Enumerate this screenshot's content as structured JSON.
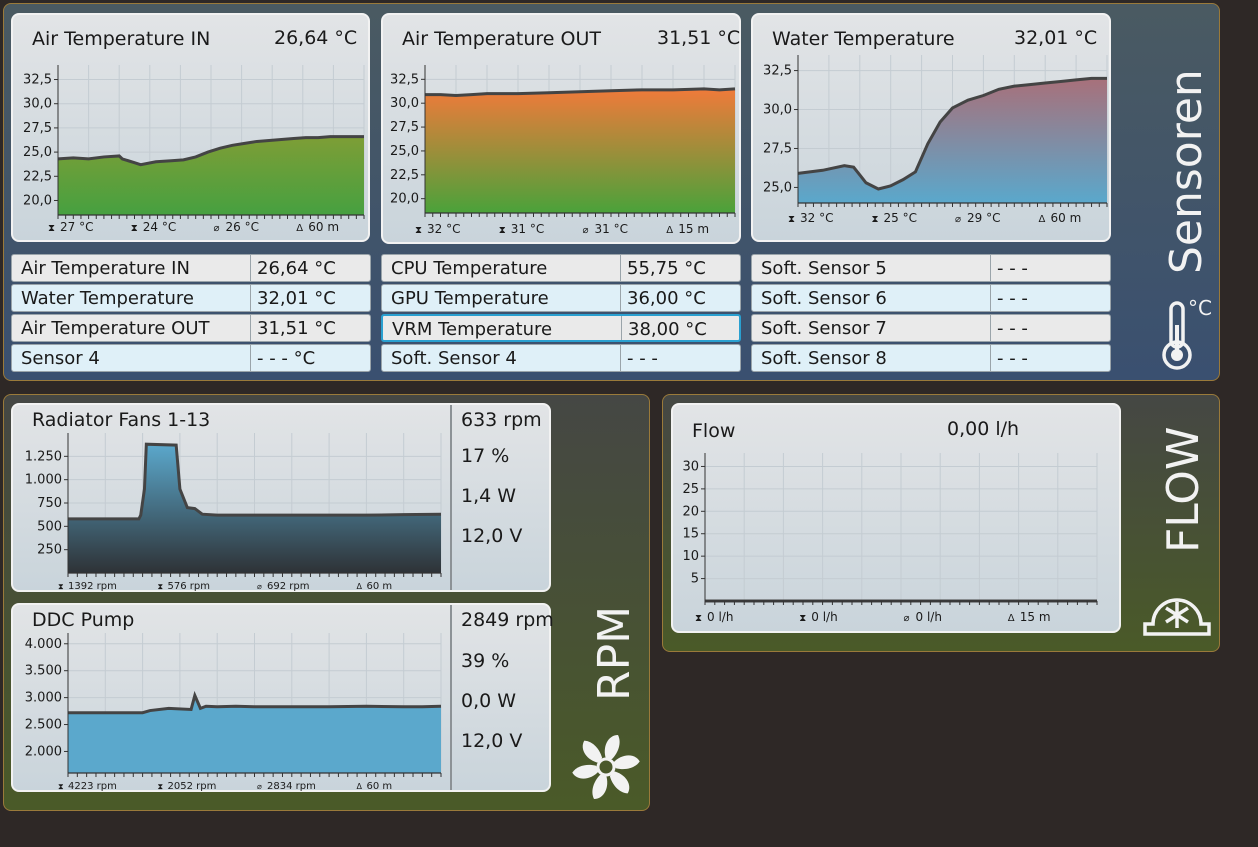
{
  "sensors_panel": {
    "label": "Sensoren",
    "unit_icon_text": "°C",
    "charts": [
      {
        "title": "Air Temperature IN",
        "value": "26,64 °C",
        "max": "27 °C",
        "min": "24 °C",
        "avg": "26 °C",
        "span": "60 m"
      },
      {
        "title": "Air Temperature OUT",
        "value": "31,51 °C",
        "max": "32 °C",
        "min": "31 °C",
        "avg": "31 °C",
        "span": "15 m"
      },
      {
        "title": "Water Temperature",
        "value": "32,01 °C",
        "max": "32 °C",
        "min": "25 °C",
        "avg": "29 °C",
        "span": "60 m"
      }
    ],
    "table": [
      [
        {
          "name": "Air Temperature IN",
          "value": "26,64 °C"
        },
        {
          "name": "Water Temperature",
          "value": "32,01 °C"
        },
        {
          "name": "Air Temperature OUT",
          "value": "31,51 °C"
        },
        {
          "name": "Sensor 4",
          "value": "- - - °C"
        }
      ],
      [
        {
          "name": "CPU Temperature",
          "value": "55,75 °C"
        },
        {
          "name": "GPU Temperature",
          "value": "36,00 °C"
        },
        {
          "name": "VRM Temperature",
          "value": "38,00 °C"
        },
        {
          "name": "Soft. Sensor 4",
          "value": "- - -"
        }
      ],
      [
        {
          "name": "Soft. Sensor 5",
          "value": "- - -"
        },
        {
          "name": "Soft. Sensor 6",
          "value": "- - -"
        },
        {
          "name": "Soft. Sensor 7",
          "value": "- - -"
        },
        {
          "name": "Soft. Sensor 8",
          "value": "- - -"
        }
      ]
    ]
  },
  "rpm_panel": {
    "label": "RPM",
    "fans": {
      "title": "Radiator Fans 1-13",
      "rpm": "633 rpm",
      "percent": "17 %",
      "power": "1,4 W",
      "voltage": "12,0 V",
      "max": "1392 rpm",
      "min": "576 rpm",
      "avg": "692 rpm",
      "span": "60 m"
    },
    "pump": {
      "title": "DDC Pump",
      "rpm": "2849 rpm",
      "percent": "39 %",
      "power": "0,0 W",
      "voltage": "12,0 V",
      "max": "4223 rpm",
      "min": "2052 rpm",
      "avg": "2834 rpm",
      "span": "60 m"
    }
  },
  "flow_panel": {
    "label": "FLOW",
    "title": "Flow",
    "value": "0,00 l/h",
    "max": "0 l/h",
    "min": "0 l/h",
    "avg": "0 l/h",
    "span": "15 m"
  },
  "chart_data": [
    {
      "type": "area",
      "title": "Air Temperature IN",
      "ylim": [
        18.5,
        34
      ],
      "yticks": [
        "20,0",
        "22,5",
        "25,0",
        "27,5",
        "30,0",
        "32,5"
      ],
      "ytick_values": [
        20,
        22.5,
        25,
        27.5,
        30,
        32.5
      ],
      "x": [
        0,
        5,
        10,
        15,
        20,
        21,
        25,
        27,
        32,
        37,
        41,
        45,
        49,
        53,
        57,
        61,
        65,
        69,
        73,
        77,
        81,
        85,
        89,
        93,
        97,
        100
      ],
      "values": [
        24.3,
        24.4,
        24.3,
        24.5,
        24.6,
        24.3,
        23.9,
        23.7,
        24.0,
        24.1,
        24.2,
        24.5,
        25.0,
        25.4,
        25.7,
        25.9,
        26.1,
        26.2,
        26.3,
        26.4,
        26.5,
        26.5,
        26.6,
        26.6,
        26.6,
        26.6
      ],
      "fill_top": "#7e9e36",
      "fill_bottom": "#46a040",
      "stroke": "#444444"
    },
    {
      "type": "area",
      "title": "Air Temperature OUT",
      "ylim": [
        18.5,
        34
      ],
      "yticks": [
        "20,0",
        "22,5",
        "25,0",
        "27,5",
        "30,0",
        "32,5"
      ],
      "ytick_values": [
        20,
        22.5,
        25,
        27.5,
        30,
        32.5
      ],
      "x": [
        0,
        5,
        10,
        15,
        20,
        30,
        40,
        50,
        60,
        70,
        80,
        90,
        95,
        100
      ],
      "values": [
        30.9,
        30.9,
        30.8,
        30.9,
        31.0,
        31.0,
        31.1,
        31.2,
        31.3,
        31.4,
        31.4,
        31.5,
        31.4,
        31.5
      ],
      "fill_top": "#f07a3a",
      "fill_bottom": "#4aa23a",
      "stroke": "#444444"
    },
    {
      "type": "area",
      "title": "Water Temperature",
      "ylim": [
        24,
        33.5
      ],
      "yticks": [
        "25,0",
        "27,5",
        "30,0",
        "32,5"
      ],
      "ytick_values": [
        25,
        27.5,
        30,
        32.5
      ],
      "x": [
        0,
        8,
        15,
        18,
        20,
        22,
        26,
        30,
        34,
        38,
        42,
        46,
        50,
        55,
        60,
        65,
        70,
        75,
        80,
        85,
        90,
        95,
        100
      ],
      "values": [
        25.9,
        26.1,
        26.4,
        26.3,
        25.8,
        25.3,
        24.9,
        25.1,
        25.5,
        26.0,
        27.8,
        29.2,
        30.1,
        30.6,
        30.9,
        31.3,
        31.5,
        31.6,
        31.7,
        31.8,
        31.9,
        32.0,
        32.0
      ],
      "fill_top": "#a8707a",
      "fill_bottom": "#5aa8cc",
      "stroke": "#444444"
    },
    {
      "type": "area",
      "title": "Radiator Fans 1-13",
      "ylim": [
        0,
        1500
      ],
      "yticks": [
        "250",
        "500",
        "750",
        "1.000",
        "1.250"
      ],
      "ytick_values": [
        250,
        500,
        750,
        1000,
        1250
      ],
      "x": [
        0,
        10,
        19,
        19.5,
        20.5,
        21,
        29,
        30,
        32,
        34,
        36,
        40,
        50,
        60,
        70,
        80,
        90,
        100
      ],
      "values": [
        580,
        580,
        580,
        620,
        900,
        1380,
        1370,
        900,
        700,
        690,
        630,
        620,
        620,
        620,
        620,
        620,
        625,
        630
      ],
      "fill_top": "#5ba8cc",
      "fill_bottom": "#2e3236",
      "stroke": "#444444"
    },
    {
      "type": "area",
      "title": "DDC Pump",
      "ylim": [
        1600,
        4200
      ],
      "yticks": [
        "2.000",
        "2.500",
        "3.000",
        "3.500",
        "4.000"
      ],
      "ytick_values": [
        2000,
        2500,
        3000,
        3500,
        4000
      ],
      "x": [
        0,
        10,
        20,
        22,
        27,
        33,
        34,
        35.5,
        37,
        40,
        45,
        50,
        60,
        70,
        80,
        90,
        95,
        100
      ],
      "values": [
        2720,
        2720,
        2720,
        2760,
        2800,
        2780,
        3040,
        2800,
        2840,
        2830,
        2840,
        2830,
        2830,
        2830,
        2840,
        2830,
        2830,
        2840
      ],
      "fill_top": "#5ba8cc",
      "fill_bottom": "#5ba8cc",
      "stroke": "#444444"
    },
    {
      "type": "line",
      "title": "Flow",
      "ylim": [
        0,
        33
      ],
      "yticks": [
        "5",
        "10",
        "15",
        "20",
        "25",
        "30"
      ],
      "ytick_values": [
        5,
        10,
        15,
        20,
        25,
        30
      ],
      "x": [
        0,
        100
      ],
      "values": [
        0,
        0
      ],
      "stroke": "#444444"
    }
  ]
}
